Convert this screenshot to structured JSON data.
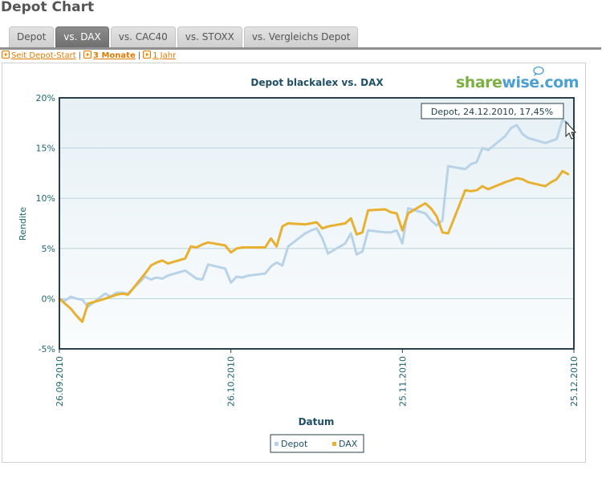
{
  "page": {
    "title": "Depot Chart"
  },
  "tabs": [
    {
      "label": "Depot",
      "active": false
    },
    {
      "label": "vs. DAX",
      "active": true
    },
    {
      "label": "vs. CAC40",
      "active": false
    },
    {
      "label": "vs. STOXX",
      "active": false
    },
    {
      "label": "vs. Vergleichs Depot",
      "active": false
    }
  ],
  "ranges": [
    {
      "label": "Seit Depot-Start",
      "active": false
    },
    {
      "label": "3 Monate",
      "active": true
    },
    {
      "label": "1 Jahr",
      "active": false
    }
  ],
  "branding": {
    "logo_part1": "share",
    "logo_part2": "wise",
    "logo_part3": ".com"
  },
  "tooltip": {
    "text": "Depot, 24.12.2010, 17,45%"
  },
  "colors": {
    "depot": "#b8d3e8",
    "dax": "#e8b030",
    "axis_text": "#1f6670",
    "title_text": "#1f4f66",
    "logo_green": "#7bb041",
    "logo_blue": "#4b9fd1"
  },
  "chart_data": {
    "type": "line",
    "title": "Depot blackalex vs. DAX",
    "xlabel": "Datum",
    "ylabel": "Rendite",
    "ylim": [
      -5,
      20
    ],
    "yticks": [
      "-5%",
      "0%",
      "5%",
      "10%",
      "15%",
      "20%"
    ],
    "xticks": [
      "26.09.2010",
      "26.10.2010",
      "25.11.2010",
      "25.12.2010"
    ],
    "xrange": [
      "2010-09-26",
      "2010-12-25"
    ],
    "grid": true,
    "legend": "bottom-center",
    "series": [
      {
        "name": "Depot",
        "x": [
          "2010-09-26",
          "2010-09-27",
          "2010-09-28",
          "2010-09-29",
          "2010-09-30",
          "2010-10-01",
          "2010-10-04",
          "2010-10-05",
          "2010-10-06",
          "2010-10-07",
          "2010-10-08",
          "2010-10-11",
          "2010-10-12",
          "2010-10-13",
          "2010-10-14",
          "2010-10-15",
          "2010-10-18",
          "2010-10-19",
          "2010-10-20",
          "2010-10-21",
          "2010-10-22",
          "2010-10-25",
          "2010-10-26",
          "2010-10-27",
          "2010-10-28",
          "2010-10-29",
          "2010-11-01",
          "2010-11-02",
          "2010-11-03",
          "2010-11-04",
          "2010-11-05",
          "2010-11-08",
          "2010-11-09",
          "2010-11-10",
          "2010-11-11",
          "2010-11-12",
          "2010-11-15",
          "2010-11-16",
          "2010-11-17",
          "2010-11-18",
          "2010-11-19",
          "2010-11-22",
          "2010-11-23",
          "2010-11-24",
          "2010-11-25",
          "2010-11-26",
          "2010-11-29",
          "2010-11-30",
          "2010-12-01",
          "2010-12-02",
          "2010-12-03",
          "2010-12-06",
          "2010-12-07",
          "2010-12-08",
          "2010-12-09",
          "2010-12-10",
          "2010-12-13",
          "2010-12-14",
          "2010-12-15",
          "2010-12-16",
          "2010-12-17",
          "2010-12-20",
          "2010-12-21",
          "2010-12-22",
          "2010-12-23",
          "2010-12-24"
        ],
        "values": [
          0,
          -0.2,
          0.2,
          0,
          -0.1,
          -0.8,
          0.5,
          0.2,
          0.6,
          0.6,
          0.5,
          2.2,
          1.9,
          2.1,
          2.0,
          2.3,
          2.8,
          2.4,
          2.0,
          1.9,
          3.4,
          3.0,
          1.6,
          2.2,
          2.1,
          2.3,
          2.5,
          3.2,
          3.6,
          3.3,
          5.2,
          6.5,
          6.8,
          7.0,
          6.0,
          4.5,
          5.5,
          6.5,
          4.4,
          4.7,
          6.8,
          6.6,
          6.6,
          6.8,
          5.5,
          9.0,
          8.5,
          7.8,
          7.3,
          7.8,
          13.2,
          12.9,
          13.4,
          13.6,
          15.0,
          14.8,
          16.2,
          17.0,
          17.3,
          16.4,
          16.0,
          15.5,
          15.7,
          15.9,
          17.8,
          17.45
        ]
      },
      {
        "name": "DAX",
        "x": [
          "2010-09-26",
          "2010-09-27",
          "2010-09-28",
          "2010-09-29",
          "2010-09-30",
          "2010-10-01",
          "2010-10-04",
          "2010-10-05",
          "2010-10-06",
          "2010-10-07",
          "2010-10-08",
          "2010-10-11",
          "2010-10-12",
          "2010-10-13",
          "2010-10-14",
          "2010-10-15",
          "2010-10-18",
          "2010-10-19",
          "2010-10-20",
          "2010-10-21",
          "2010-10-22",
          "2010-10-25",
          "2010-10-26",
          "2010-10-27",
          "2010-10-28",
          "2010-10-29",
          "2010-11-01",
          "2010-11-02",
          "2010-11-03",
          "2010-11-04",
          "2010-11-05",
          "2010-11-08",
          "2010-11-09",
          "2010-11-10",
          "2010-11-11",
          "2010-11-12",
          "2010-11-15",
          "2010-11-16",
          "2010-11-17",
          "2010-11-18",
          "2010-11-19",
          "2010-11-22",
          "2010-11-23",
          "2010-11-24",
          "2010-11-25",
          "2010-11-26",
          "2010-11-29",
          "2010-11-30",
          "2010-12-01",
          "2010-12-02",
          "2010-12-03",
          "2010-12-06",
          "2010-12-07",
          "2010-12-08",
          "2010-12-09",
          "2010-12-10",
          "2010-12-13",
          "2010-12-14",
          "2010-12-15",
          "2010-12-16",
          "2010-12-17",
          "2010-12-20",
          "2010-12-21",
          "2010-12-22",
          "2010-12-23",
          "2010-12-24"
        ],
        "values": [
          0,
          -0.5,
          -1.0,
          -1.7,
          -2.3,
          -0.5,
          0,
          0.2,
          0.4,
          0.5,
          0.4,
          2.5,
          3.3,
          3.6,
          3.8,
          3.5,
          4.0,
          5.2,
          5.1,
          5.4,
          5.6,
          5.3,
          4.6,
          5.0,
          5.1,
          5.1,
          5.1,
          6.0,
          5.2,
          7.2,
          7.5,
          7.4,
          7.5,
          7.6,
          7.0,
          7.2,
          7.5,
          8.0,
          6.4,
          6.6,
          8.8,
          8.9,
          8.6,
          8.5,
          6.8,
          8.5,
          9.5,
          9.0,
          8.2,
          6.6,
          6.5,
          10.8,
          10.7,
          10.8,
          11.2,
          10.9,
          11.6,
          11.8,
          12.0,
          11.9,
          11.6,
          11.2,
          11.6,
          11.9,
          12.7,
          12.4
        ]
      }
    ]
  }
}
